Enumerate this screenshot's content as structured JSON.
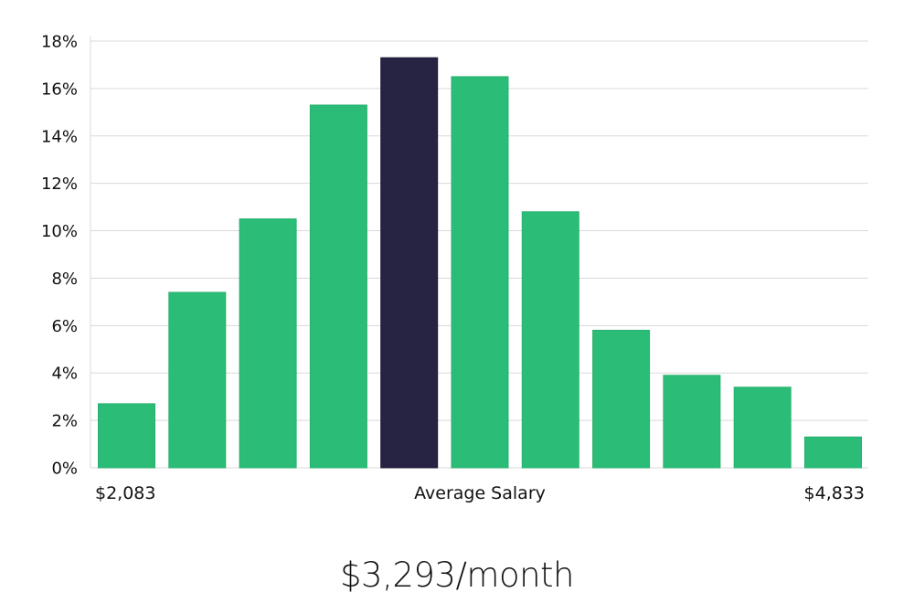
{
  "headline": "$3,293/month",
  "colors": {
    "bar": "#2bbd77",
    "highlight": "#262343",
    "grid": "#d9d9d9"
  },
  "chart_data": {
    "type": "bar",
    "categories": [
      "1",
      "2",
      "3",
      "4",
      "5",
      "6",
      "7",
      "8",
      "9",
      "10",
      "11"
    ],
    "values": [
      2.7,
      7.4,
      10.5,
      15.3,
      17.3,
      16.5,
      10.8,
      5.8,
      3.9,
      3.4,
      1.3
    ],
    "highlight_index": 4,
    "ylim": [
      0,
      18
    ],
    "yticks": [
      "0%",
      "2%",
      "4%",
      "6%",
      "8%",
      "10%",
      "12%",
      "14%",
      "16%",
      "18%"
    ],
    "ytick_values": [
      0,
      2,
      4,
      6,
      8,
      10,
      12,
      14,
      16,
      18
    ],
    "x_labels": {
      "min": "$2,083",
      "center": "Average Salary",
      "max": "$4,833"
    },
    "grid": true
  }
}
